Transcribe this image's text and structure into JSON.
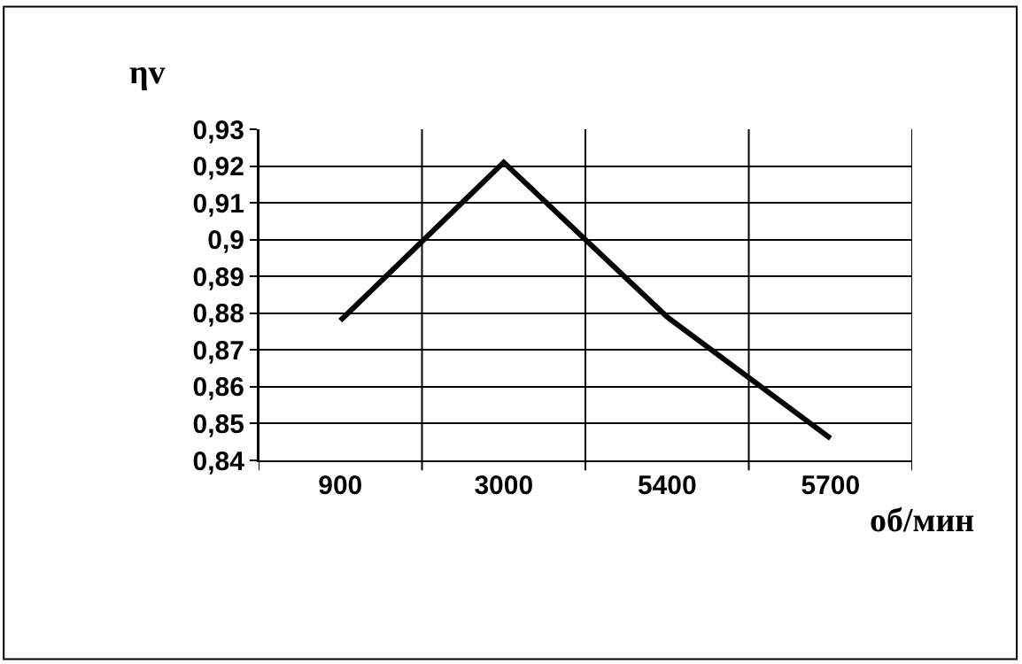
{
  "chart_data": {
    "type": "line",
    "xlabel": "об/мин",
    "ylabel": "ηv",
    "categories": [
      "900",
      "3000",
      "5400",
      "5700"
    ],
    "series": [
      {
        "color": "#000000",
        "values": [
          0.878,
          0.921,
          0.879,
          0.846
        ]
      }
    ],
    "ylim": [
      0.84,
      0.93
    ],
    "yticks": [
      {
        "value": 0.84,
        "label": "0,84"
      },
      {
        "value": 0.85,
        "label": "0,85"
      },
      {
        "value": 0.86,
        "label": "0,86"
      },
      {
        "value": 0.87,
        "label": "0,87"
      },
      {
        "value": 0.88,
        "label": "0,88"
      },
      {
        "value": 0.89,
        "label": "0,89"
      },
      {
        "value": 0.9,
        "label": "0,9"
      },
      {
        "value": 0.91,
        "label": "0,91"
      },
      {
        "value": 0.92,
        "label": "0,92"
      },
      {
        "value": 0.93,
        "label": "0,93"
      }
    ],
    "grid": true,
    "marker": "none",
    "line_style": "solid"
  }
}
